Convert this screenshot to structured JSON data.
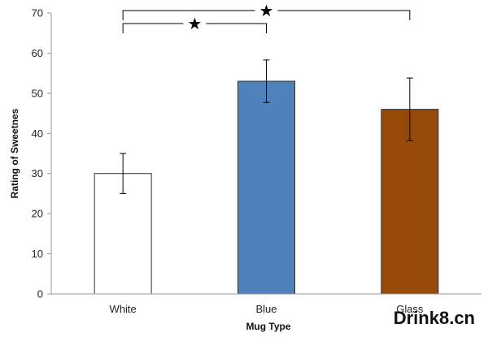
{
  "chart_data": {
    "type": "bar",
    "categories": [
      "White",
      "Blue",
      "Glass"
    ],
    "values": [
      30,
      53,
      46
    ],
    "error": [
      5,
      5.3,
      7.8
    ],
    "colors": [
      "#ffffff",
      "#4f81bd",
      "#954a09"
    ],
    "xlabel": "Mug Type",
    "ylabel": "Rating of Sweetnes",
    "ylim": [
      0,
      70
    ],
    "yticks": [
      "0",
      "10",
      "20",
      "30",
      "40",
      "50",
      "60",
      "70"
    ],
    "grid": false,
    "significance": [
      {
        "between": [
          "White",
          "Blue"
        ],
        "marker": "★"
      },
      {
        "between": [
          "White",
          "Glass"
        ],
        "marker": "★"
      }
    ]
  },
  "watermark": "Drink8.cn"
}
